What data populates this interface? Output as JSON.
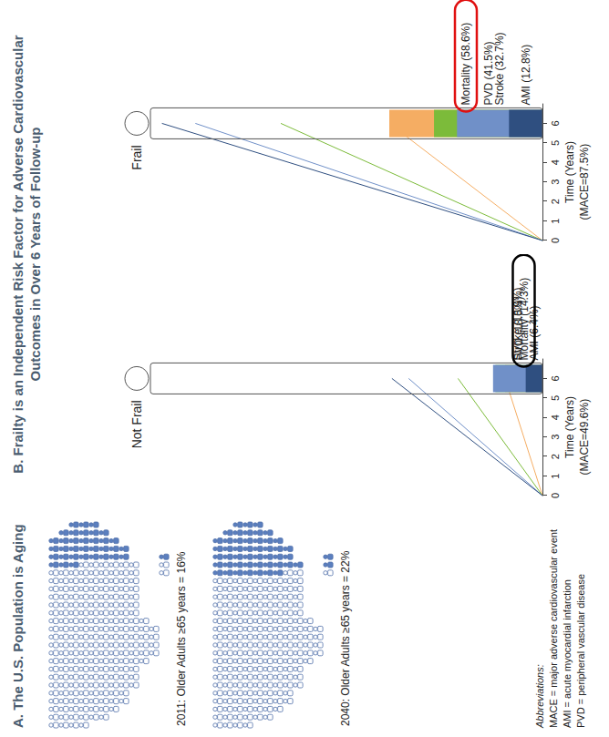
{
  "panel_a": {
    "title": "A. The U.S. Population is Aging",
    "maps": [
      {
        "caption": "2011: Older Adults ≥65 years = 16%",
        "percent": 16
      },
      {
        "caption": "2040: Older Adults ≥65 years = 22%",
        "percent": 22
      }
    ]
  },
  "panel_b_title": "B. Frailty is an Independent Risk Factor for Adverse Cardiovascular Outcomes in Over 6 Years of Follow-up",
  "chart_data": [
    {
      "type": "bar",
      "stacked": true,
      "title": "Not Frail",
      "annotation": "(MACE=49.6%)",
      "xlabel": "Time (Years)",
      "x": [
        6
      ],
      "xlim": [
        0,
        7
      ],
      "xticks": [
        0,
        1,
        2,
        3,
        4,
        5,
        6
      ],
      "ylim": [
        0,
        150
      ],
      "tick_labels": "x",
      "data_labels": true,
      "series": [
        {
          "name": "Mortality",
          "color": "#f5ad63",
          "values": [
            14.3
          ],
          "value_labels": [
            "Mortality (14.3%)"
          ]
        },
        {
          "name": "PVD",
          "color": "#7cbb3a",
          "values": [
            18.0
          ],
          "value_labels": [
            "PVD (18.0%)"
          ]
        },
        {
          "name": "Stroke",
          "color": "#7090c8",
          "values": [
            18.9
          ],
          "value_labels": [
            "Stroke (18.9%)"
          ]
        },
        {
          "name": "AMI",
          "color": "#2f4f80",
          "values": [
            6.4
          ],
          "value_labels": [
            "AMI (6.4%)"
          ]
        }
      ]
    },
    {
      "type": "bar",
      "stacked": true,
      "title": "Frail",
      "annotation": "(MACE=87.5%)",
      "xlabel": "Time (Years)",
      "x": [
        6
      ],
      "xlim": [
        0,
        7
      ],
      "xticks": [
        0,
        1,
        2,
        3,
        4,
        5,
        6
      ],
      "ylim": [
        0,
        150
      ],
      "tick_labels": "x",
      "data_labels": true,
      "series": [
        {
          "name": "Mortality",
          "color": "#f5ad63",
          "values": [
            58.6
          ],
          "value_labels": [
            "Mortality (58.6%)"
          ]
        },
        {
          "name": "PVD",
          "color": "#7cbb3a",
          "values": [
            41.5
          ],
          "value_labels": [
            "PVD (41.5%)"
          ]
        },
        {
          "name": "Stroke",
          "color": "#7090c8",
          "values": [
            32.7
          ],
          "value_labels": [
            "Stroke (32.7%)"
          ]
        },
        {
          "name": "AMI",
          "color": "#2f4f80",
          "values": [
            12.8
          ],
          "value_labels": [
            "AMI (12.8%)"
          ]
        }
      ]
    }
  ],
  "abbreviations": {
    "title": "Abbreviations:",
    "lines": [
      "MACE = major adverse cardiovascular event",
      "AMI = acute myocardial infarction",
      "PVD = peripheral vascular disease"
    ]
  }
}
